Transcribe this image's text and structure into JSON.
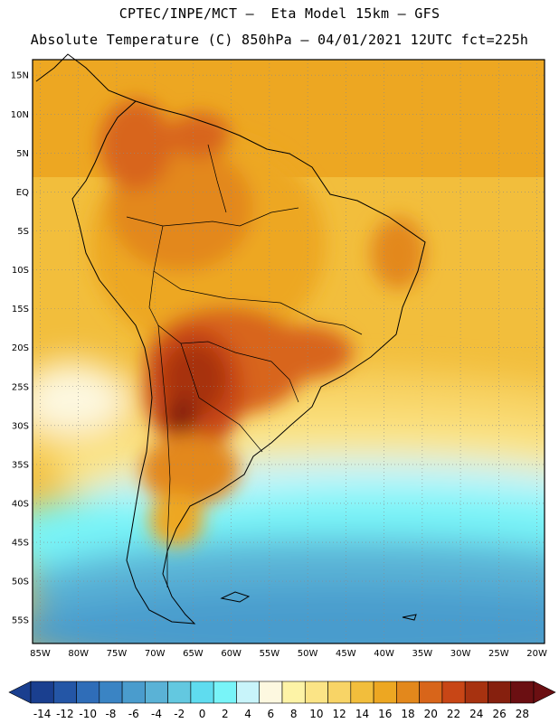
{
  "header": {
    "line1": "CPTEC/INPE/MCT –  Eta Model 15km – GFS",
    "line2": "Absolute Temperature (C) 850hPa – 04/01/2021 12UTC fct=225h"
  },
  "map": {
    "lat_labels": [
      "15N",
      "10N",
      "5N",
      "EQ",
      "5S",
      "10S",
      "15S",
      "20S",
      "25S",
      "30S",
      "35S",
      "40S",
      "45S",
      "50S",
      "55S"
    ],
    "lon_labels": [
      "85W",
      "80W",
      "75W",
      "70W",
      "65W",
      "60W",
      "55W",
      "50W",
      "45W",
      "40W",
      "35W",
      "30W",
      "25W",
      "20W"
    ],
    "lat_values": [
      15,
      10,
      5,
      0,
      -5,
      -10,
      -15,
      -20,
      -25,
      -30,
      -35,
      -40,
      -45,
      -50,
      -55
    ],
    "lon_values": [
      -85,
      -80,
      -75,
      -70,
      -65,
      -60,
      -55,
      -50,
      -45,
      -40,
      -35,
      -30,
      -25,
      -20
    ],
    "lat_range": [
      -58,
      17
    ],
    "lon_range": [
      -86,
      -19
    ]
  },
  "colorbar": {
    "labels": [
      "-14",
      "-12",
      "-10",
      "-8",
      "-6",
      "-4",
      "-2",
      "0",
      "2",
      "4",
      "6",
      "8",
      "10",
      "12",
      "14",
      "16",
      "18",
      "20",
      "22",
      "24",
      "26",
      "28"
    ],
    "colors": [
      "#1a3f8f",
      "#2456a6",
      "#2f6db8",
      "#3a84c4",
      "#4a9ccd",
      "#5ab2d6",
      "#63c8e0",
      "#5fdcef",
      "#78f4f8",
      "#c8f4fa",
      "#fdf8e0",
      "#fdf3a6",
      "#fbe486",
      "#f8d466",
      "#f2be3c",
      "#eda722",
      "#e3881c",
      "#d8651a",
      "#c84616",
      "#a73210",
      "#86200e",
      "#6b0f12"
    ]
  }
}
